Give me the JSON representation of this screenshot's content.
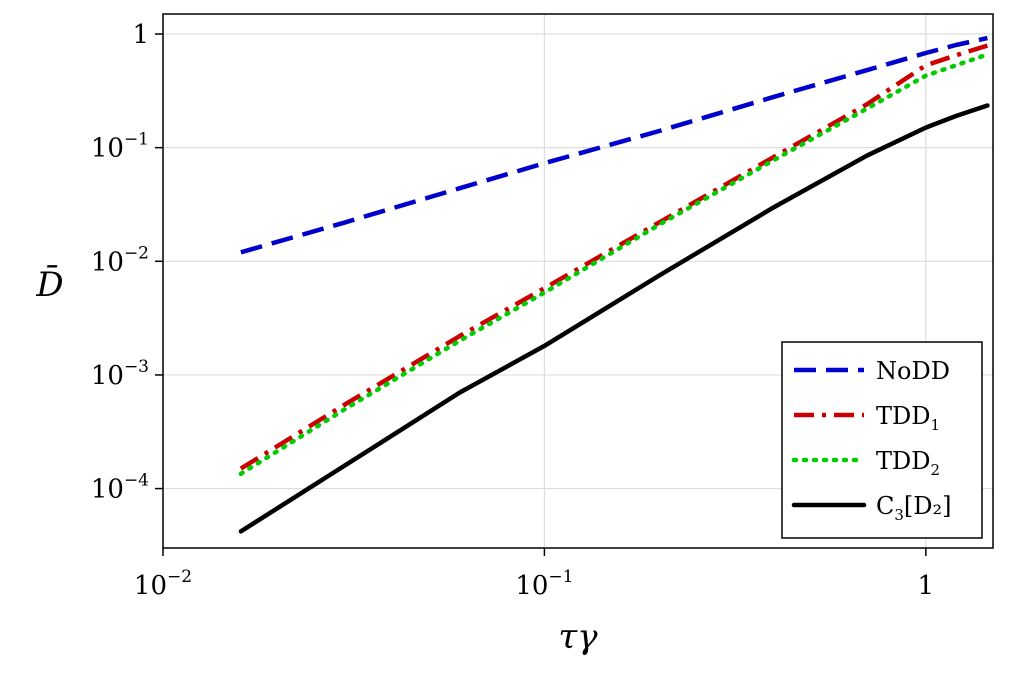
{
  "chart_data": {
    "type": "line",
    "xlabel": "τγ",
    "ylabel": "D̄",
    "xscale": "log",
    "yscale": "log",
    "xlim": [
      0.01,
      1.5
    ],
    "ylim": [
      3e-05,
      1.5
    ],
    "grid": true,
    "legend_position": "bottom-right",
    "x_ticks": [
      {
        "value": 0.01,
        "base": "10",
        "exp": "−2"
      },
      {
        "value": 0.1,
        "base": "10",
        "exp": "−1"
      },
      {
        "value": 1,
        "base": "1",
        "exp": ""
      }
    ],
    "y_ticks": [
      {
        "value": 1,
        "base": "1",
        "exp": ""
      },
      {
        "value": 0.1,
        "base": "10",
        "exp": "−1"
      },
      {
        "value": 0.01,
        "base": "10",
        "exp": "−2"
      },
      {
        "value": 0.001,
        "base": "10",
        "exp": "−3"
      },
      {
        "value": 0.0001,
        "base": "10",
        "exp": "−4"
      }
    ],
    "series": [
      {
        "name": "NoDD",
        "label_main": "NoDD",
        "label_sub": "",
        "label_tail": "",
        "color": "#0000cc",
        "style": "dashed",
        "x": [
          0.016,
          0.03,
          0.06,
          0.1,
          0.2,
          0.4,
          0.7,
          1.0,
          1.2,
          1.45
        ],
        "y": [
          0.012,
          0.022,
          0.044,
          0.073,
          0.14,
          0.28,
          0.48,
          0.68,
          0.8,
          0.92
        ]
      },
      {
        "name": "TDD1",
        "label_main": "TDD",
        "label_sub": "1",
        "label_tail": "",
        "color": "#cc0000",
        "style": "dashdot",
        "x": [
          0.016,
          0.03,
          0.06,
          0.1,
          0.2,
          0.4,
          0.7,
          1.0,
          1.2,
          1.45
        ],
        "y": [
          0.00015,
          0.00055,
          0.0022,
          0.0058,
          0.022,
          0.083,
          0.24,
          0.53,
          0.65,
          0.79
        ]
      },
      {
        "name": "TDD2",
        "label_main": "TDD",
        "label_sub": "2",
        "label_tail": "",
        "color": "#00cc00",
        "style": "dotted",
        "x": [
          0.016,
          0.03,
          0.06,
          0.1,
          0.2,
          0.4,
          0.7,
          1.0,
          1.2,
          1.45
        ],
        "y": [
          0.000135,
          0.0005,
          0.002,
          0.0053,
          0.021,
          0.078,
          0.22,
          0.43,
          0.53,
          0.66
        ]
      },
      {
        "name": "C3[D2]",
        "label_main": "C",
        "label_sub": "3",
        "label_tail": "[D₂]",
        "color": "#000000",
        "style": "solid",
        "x": [
          0.016,
          0.03,
          0.06,
          0.1,
          0.2,
          0.4,
          0.7,
          1.0,
          1.2,
          1.45
        ],
        "y": [
          4.2e-05,
          0.00016,
          0.0007,
          0.0018,
          0.0075,
          0.03,
          0.085,
          0.15,
          0.19,
          0.235
        ]
      }
    ]
  }
}
